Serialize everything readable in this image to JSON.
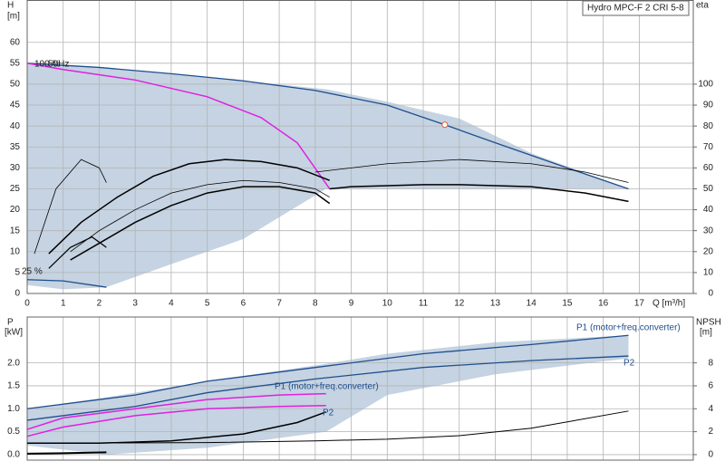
{
  "chart_data": [
    {
      "type": "line",
      "title": "Hydro MPC-F 2 CRI 5-8",
      "y_label": "H",
      "y_unit": "[m]",
      "y2_label": "eta",
      "x_label": "Q [m³/h]",
      "xlim": [
        0,
        18.5
      ],
      "xticks": [
        0,
        1,
        2,
        3,
        4,
        5,
        6,
        7,
        8,
        9,
        10,
        11,
        12,
        13,
        14,
        15,
        16,
        17
      ],
      "xtick_labels": true,
      "ylim": [
        0,
        70
      ],
      "yticks": [
        0,
        5,
        10,
        15,
        20,
        25,
        30,
        35,
        40,
        45,
        50,
        55,
        60
      ],
      "y2lim": [
        0,
        140
      ],
      "y2ticks": [
        0,
        10,
        20,
        30,
        40,
        50,
        60,
        70,
        80,
        90,
        100
      ],
      "grid": true,
      "annotations": [
        "100 %",
        "50Hz",
        "25 %"
      ],
      "bands": [
        {
          "color": "#c5d3e2",
          "x": [
            0,
            1,
            2.2,
            4,
            6,
            8.3,
            10,
            12,
            14,
            16.7
          ],
          "upper": [
            55,
            54.5,
            53.8,
            52.5,
            50.8,
            48.8,
            45.8,
            41.8,
            33.5,
            25
          ],
          "lower": [
            2,
            1,
            1.5,
            7,
            13,
            25,
            25,
            25,
            25,
            25
          ]
        }
      ],
      "series": [
        {
          "color": "#1f4e8c",
          "width": 1.3,
          "x": [
            0,
            2,
            4,
            6,
            8,
            10,
            11.6,
            13,
            15,
            16.7
          ],
          "values": [
            55,
            54,
            52.5,
            50.8,
            48.5,
            45,
            40.3,
            36,
            30,
            25
          ]
        },
        {
          "color": "#1f4e8c",
          "width": 1.3,
          "x": [
            0,
            1,
            2.2
          ],
          "values": [
            3.3,
            3,
            1.5
          ]
        },
        {
          "color": "#e020e0",
          "width": 1.5,
          "x": [
            0,
            1,
            3,
            5,
            6.5,
            7.5,
            8.4
          ],
          "values": [
            55,
            53.5,
            51,
            47,
            42,
            36,
            25
          ]
        },
        {
          "color": "#000000",
          "width": 1.5,
          "x": [
            8.4,
            9,
            11,
            12,
            14,
            15.5,
            16.7
          ],
          "values": [
            25,
            25.5,
            26,
            26,
            25.5,
            24,
            22
          ]
        },
        {
          "color": "#000000",
          "width": 0.8,
          "x": [
            8,
            10,
            12,
            14,
            15.5,
            16.7
          ],
          "values": [
            29,
            31,
            32,
            31,
            29,
            26.5
          ]
        },
        {
          "color": "#000000",
          "width": 1.5,
          "x": [
            0.6,
            1.5,
            2.5,
            3.5,
            4.5,
            5.5,
            6.5,
            7.5,
            8.4
          ],
          "values": [
            9.5,
            17,
            23,
            28,
            31,
            32,
            31.5,
            30,
            27
          ]
        },
        {
          "color": "#000000",
          "width": 1.5,
          "x": [
            1.2,
            2,
            3,
            4,
            5,
            6,
            7,
            8,
            8.4
          ],
          "values": [
            8,
            12,
            17,
            21,
            24,
            25.5,
            25.5,
            24,
            21.5
          ]
        },
        {
          "color": "#000000",
          "width": 0.8,
          "x": [
            1.2,
            2,
            3,
            4,
            5,
            6,
            7,
            8,
            8.4
          ],
          "values": [
            10,
            15,
            20,
            24,
            26,
            27,
            26.5,
            25,
            23
          ]
        },
        {
          "color": "#000000",
          "width": 0.8,
          "x": [
            0.2,
            0.8,
            1.5,
            2,
            2.2
          ],
          "values": [
            9.5,
            25,
            32,
            30,
            26.5
          ]
        },
        {
          "color": "#000000",
          "width": 1.2,
          "x": [
            0.6,
            1.2,
            1.8,
            2.2
          ],
          "values": [
            6,
            11,
            13.5,
            11
          ]
        }
      ],
      "points": [
        {
          "x": 11.6,
          "y": 40.3,
          "color": "#e06040"
        }
      ]
    },
    {
      "type": "line",
      "y_label": "P",
      "y_unit": "[kW]",
      "y2_label": "NPSH",
      "y2_unit": "[m]",
      "xlim": [
        0,
        18.5
      ],
      "xticks": [
        0,
        1,
        2,
        3,
        4,
        5,
        6,
        7,
        8,
        9,
        10,
        11,
        12,
        13,
        14,
        15,
        16,
        17
      ],
      "xtick_labels": false,
      "ylim": [
        -0.12,
        3.0
      ],
      "yticks": [
        {
          "value": 0,
          "label": "0.0"
        },
        0.5,
        {
          "value": 1,
          "label": "1.0"
        },
        1.5,
        {
          "value": 2,
          "label": "2.0"
        }
      ],
      "y2lim": [
        -0.48,
        12
      ],
      "y2ticks": [
        0,
        2,
        4,
        6,
        8
      ],
      "grid": true,
      "annotations": [
        "P1 (motor+freq.converter)",
        "P2",
        "P1 (motor+freq.converter)",
        "P2"
      ],
      "bands": [
        {
          "color": "#c5d3e2",
          "x": [
            0,
            2.2,
            5,
            8.3,
            10,
            13,
            16.7
          ],
          "upper": [
            1.0,
            1.25,
            1.6,
            1.98,
            2.2,
            2.45,
            2.6
          ],
          "lower": [
            0.2,
            0,
            0.15,
            0.5,
            1.3,
            1.75,
            2.1
          ]
        }
      ],
      "series": [
        {
          "color": "#1f4e8c",
          "width": 1.3,
          "x": [
            0,
            3,
            5,
            8,
            11,
            14,
            16.7
          ],
          "values": [
            1.0,
            1.3,
            1.6,
            1.9,
            2.2,
            2.4,
            2.6
          ]
        },
        {
          "color": "#1f4e8c",
          "width": 1.3,
          "x": [
            0,
            3,
            5,
            8,
            11,
            14,
            16.7
          ],
          "values": [
            0.75,
            1.05,
            1.35,
            1.65,
            1.9,
            2.05,
            2.15
          ]
        },
        {
          "color": "#e020e0",
          "width": 1.5,
          "x": [
            0,
            1,
            3,
            5,
            7,
            8.3
          ],
          "values": [
            0.55,
            0.8,
            1.0,
            1.2,
            1.3,
            1.33
          ]
        },
        {
          "color": "#e020e0",
          "width": 1.5,
          "x": [
            0,
            1,
            3,
            5,
            7,
            8.3
          ],
          "values": [
            0.4,
            0.6,
            0.85,
            1.0,
            1.05,
            1.07
          ]
        },
        {
          "color": "#000000",
          "width": 1.5,
          "x": [
            0,
            2,
            4,
            6,
            7.5,
            8.3
          ],
          "values": [
            0.25,
            0.25,
            0.3,
            0.45,
            0.7,
            0.93
          ]
        },
        {
          "color": "#000000",
          "width": 2,
          "x": [
            0,
            1,
            2.2
          ],
          "values": [
            0.02,
            0.03,
            0.05
          ]
        },
        {
          "color": "#000000",
          "width": 1,
          "axis": "y2",
          "x": [
            0,
            5,
            8,
            10,
            12,
            14,
            16.7
          ],
          "values": [
            1,
            1.05,
            1.2,
            1.35,
            1.65,
            2.3,
            3.8
          ]
        }
      ]
    }
  ]
}
